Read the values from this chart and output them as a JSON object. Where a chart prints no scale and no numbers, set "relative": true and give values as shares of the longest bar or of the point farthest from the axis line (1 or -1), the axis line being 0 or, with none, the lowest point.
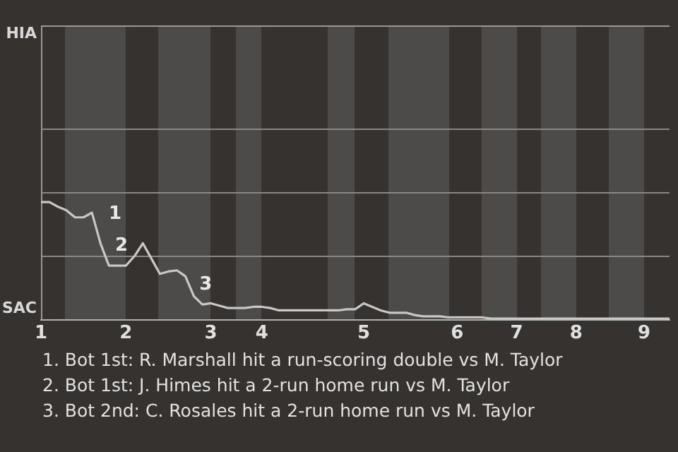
{
  "chart_data": {
    "type": "line",
    "relative": true,
    "categories": [
      "1",
      null,
      null,
      null,
      null,
      null,
      null,
      null,
      null,
      null,
      "2",
      null,
      null,
      null,
      null,
      null,
      null,
      null,
      null,
      null,
      "3",
      null,
      null,
      null,
      null,
      null,
      "4",
      null,
      null,
      null,
      null,
      null,
      null,
      null,
      null,
      null,
      null,
      null,
      "5",
      null,
      null,
      null,
      null,
      null,
      null,
      null,
      null,
      null,
      null,
      "6",
      null,
      null,
      null,
      null,
      null,
      null,
      "7",
      null,
      null,
      null,
      null,
      null,
      null,
      "8",
      null,
      null,
      null,
      null,
      null,
      null,
      null,
      "9",
      null,
      null,
      null
    ],
    "series": [
      {
        "color": "#c8c8c8",
        "values": [
          1,
          1,
          0.96,
          0.93,
          0.87,
          0.87,
          0.91,
          0.65,
          0.46,
          0.46,
          0.46,
          0.54,
          0.65,
          0.52,
          0.39,
          0.41,
          0.42,
          0.37,
          0.2,
          0.13,
          0.14,
          0.12,
          0.1,
          0.1,
          0.1,
          0.11,
          0.11,
          0.1,
          0.08,
          0.08,
          0.08,
          0.08,
          0.08,
          0.08,
          0.08,
          0.08,
          0.09,
          0.09,
          0.14,
          0.11,
          0.08,
          0.06,
          0.06,
          0.06,
          0.04,
          0.03,
          0.03,
          0.03,
          0.02,
          0.02,
          0.02,
          0.02,
          0.02,
          0.01,
          0.01,
          0.01,
          0.01,
          0.01,
          0.01,
          0.01,
          0.01,
          0.01,
          0.01,
          0.01,
          0.01,
          0.01,
          0.01,
          0.01,
          0.01,
          0.01,
          0.01,
          0.01,
          0.01,
          0.01,
          0.01
        ]
      }
    ],
    "ref_lines": [
      {
        "axis": "y",
        "value": 0.54,
        "color": "#8a8886"
      },
      {
        "axis": "y",
        "value": 1.09,
        "color": "#8a8886"
      },
      {
        "axis": "y",
        "value": 1.63,
        "color": "#8a8886"
      }
    ],
    "annotations": [
      "HIA",
      "SAC",
      "1",
      "2",
      "3",
      "1. Bot 1st: R. Marshall hit a run-scoring double vs M. Taylor",
      "2. Bot 1st: J. Himes hit a 2-run home run vs M. Taylor",
      "3. Bot 2nd: C. Rosales hit a 2-run home run vs M. Taylor"
    ]
  }
}
